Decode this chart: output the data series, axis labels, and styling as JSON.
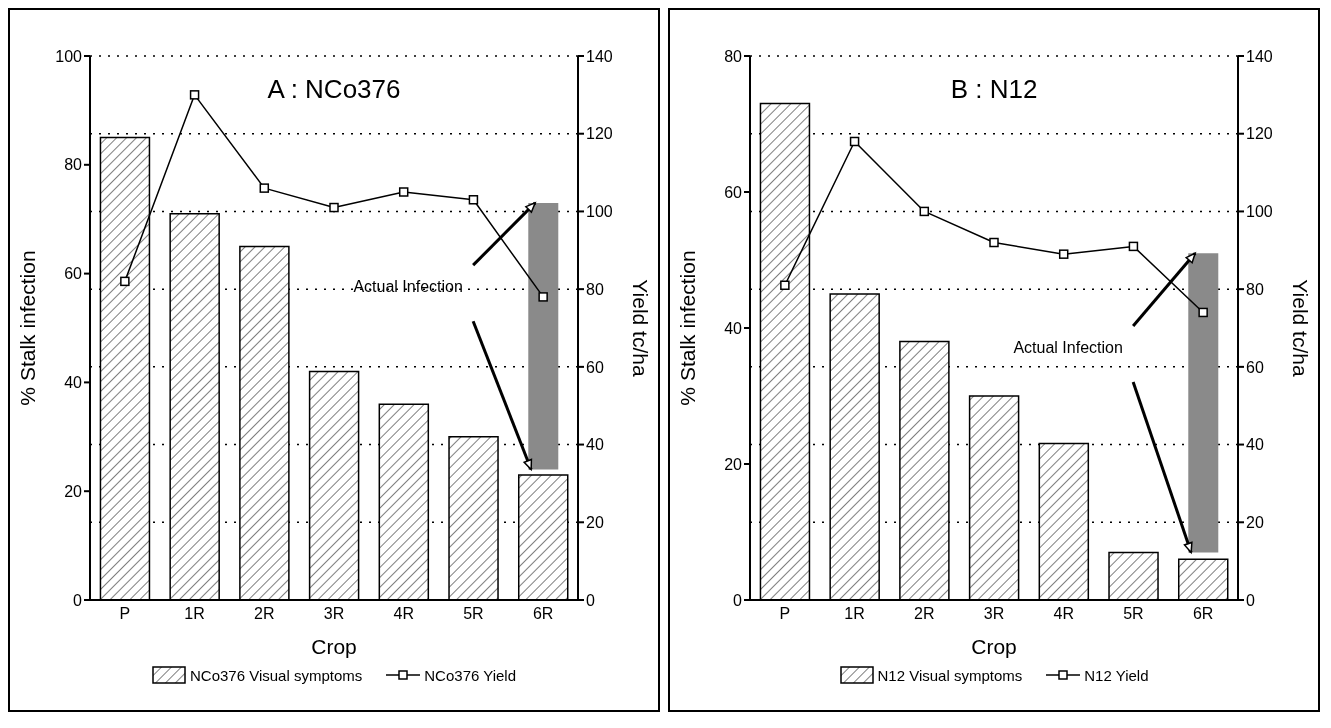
{
  "chart_data": [
    {
      "type": "bar",
      "title": "A : NCo376",
      "xlabel": "Crop",
      "ylabel": "% Stalk infection",
      "y2label": "Yield tc/ha",
      "categories": [
        "P",
        "1R",
        "2R",
        "3R",
        "4R",
        "5R",
        "6R"
      ],
      "series": [
        {
          "name": "NCo376 Visual symptoms",
          "color": "#000000",
          "values": [
            85,
            71,
            65,
            42,
            36,
            30,
            23
          ]
        },
        {
          "name": "NCo376 Yield",
          "type": "line",
          "axis": "y2",
          "color": "#000000",
          "values": [
            82,
            130,
            106,
            101,
            105,
            103,
            78
          ]
        },
        {
          "type": "bar",
          "color": "#8a8a8a",
          "base": [
            null,
            null,
            null,
            null,
            null,
            null,
            24
          ],
          "values": [
            null,
            null,
            null,
            null,
            null,
            null,
            49
          ]
        }
      ],
      "ylim": [
        0,
        100
      ],
      "yticks": [
        0,
        20,
        40,
        60,
        80,
        100
      ],
      "y2lim": [
        0,
        140
      ],
      "y2ticks": [
        0,
        20,
        40,
        60,
        80,
        100,
        120,
        140
      ],
      "grid": "y2",
      "legend": "bottom",
      "marker": "square",
      "line_style": "solid",
      "annotations": [
        {
          "text": "Actual Infection",
          "x": "6R",
          "y": 73
        }
      ]
    },
    {
      "type": "bar",
      "title": "B : N12",
      "xlabel": "Crop",
      "ylabel": "% Stalk infection",
      "y2label": "Yield tc/ha",
      "categories": [
        "P",
        "1R",
        "2R",
        "3R",
        "4R",
        "5R",
        "6R"
      ],
      "series": [
        {
          "name": "N12 Visual symptoms",
          "color": "#000000",
          "values": [
            73,
            45,
            38,
            30,
            23,
            7,
            6
          ]
        },
        {
          "name": "N12 Yield",
          "type": "line",
          "axis": "y2",
          "color": "#000000",
          "values": [
            81,
            118,
            100,
            92,
            89,
            91,
            74
          ]
        },
        {
          "type": "bar",
          "color": "#8a8a8a",
          "base": [
            null,
            null,
            null,
            null,
            null,
            null,
            7
          ],
          "values": [
            null,
            null,
            null,
            null,
            null,
            null,
            44
          ]
        }
      ],
      "ylim": [
        0,
        80
      ],
      "yticks": [
        0,
        20,
        40,
        60,
        80
      ],
      "y2lim": [
        0,
        140
      ],
      "y2ticks": [
        0,
        20,
        40,
        60,
        80,
        100,
        120,
        140
      ],
      "grid": "y2",
      "legend": "bottom",
      "marker": "square",
      "line_style": "solid",
      "annotations": [
        {
          "text": "Actual Infection",
          "x": "6R",
          "y": 51
        }
      ]
    }
  ]
}
